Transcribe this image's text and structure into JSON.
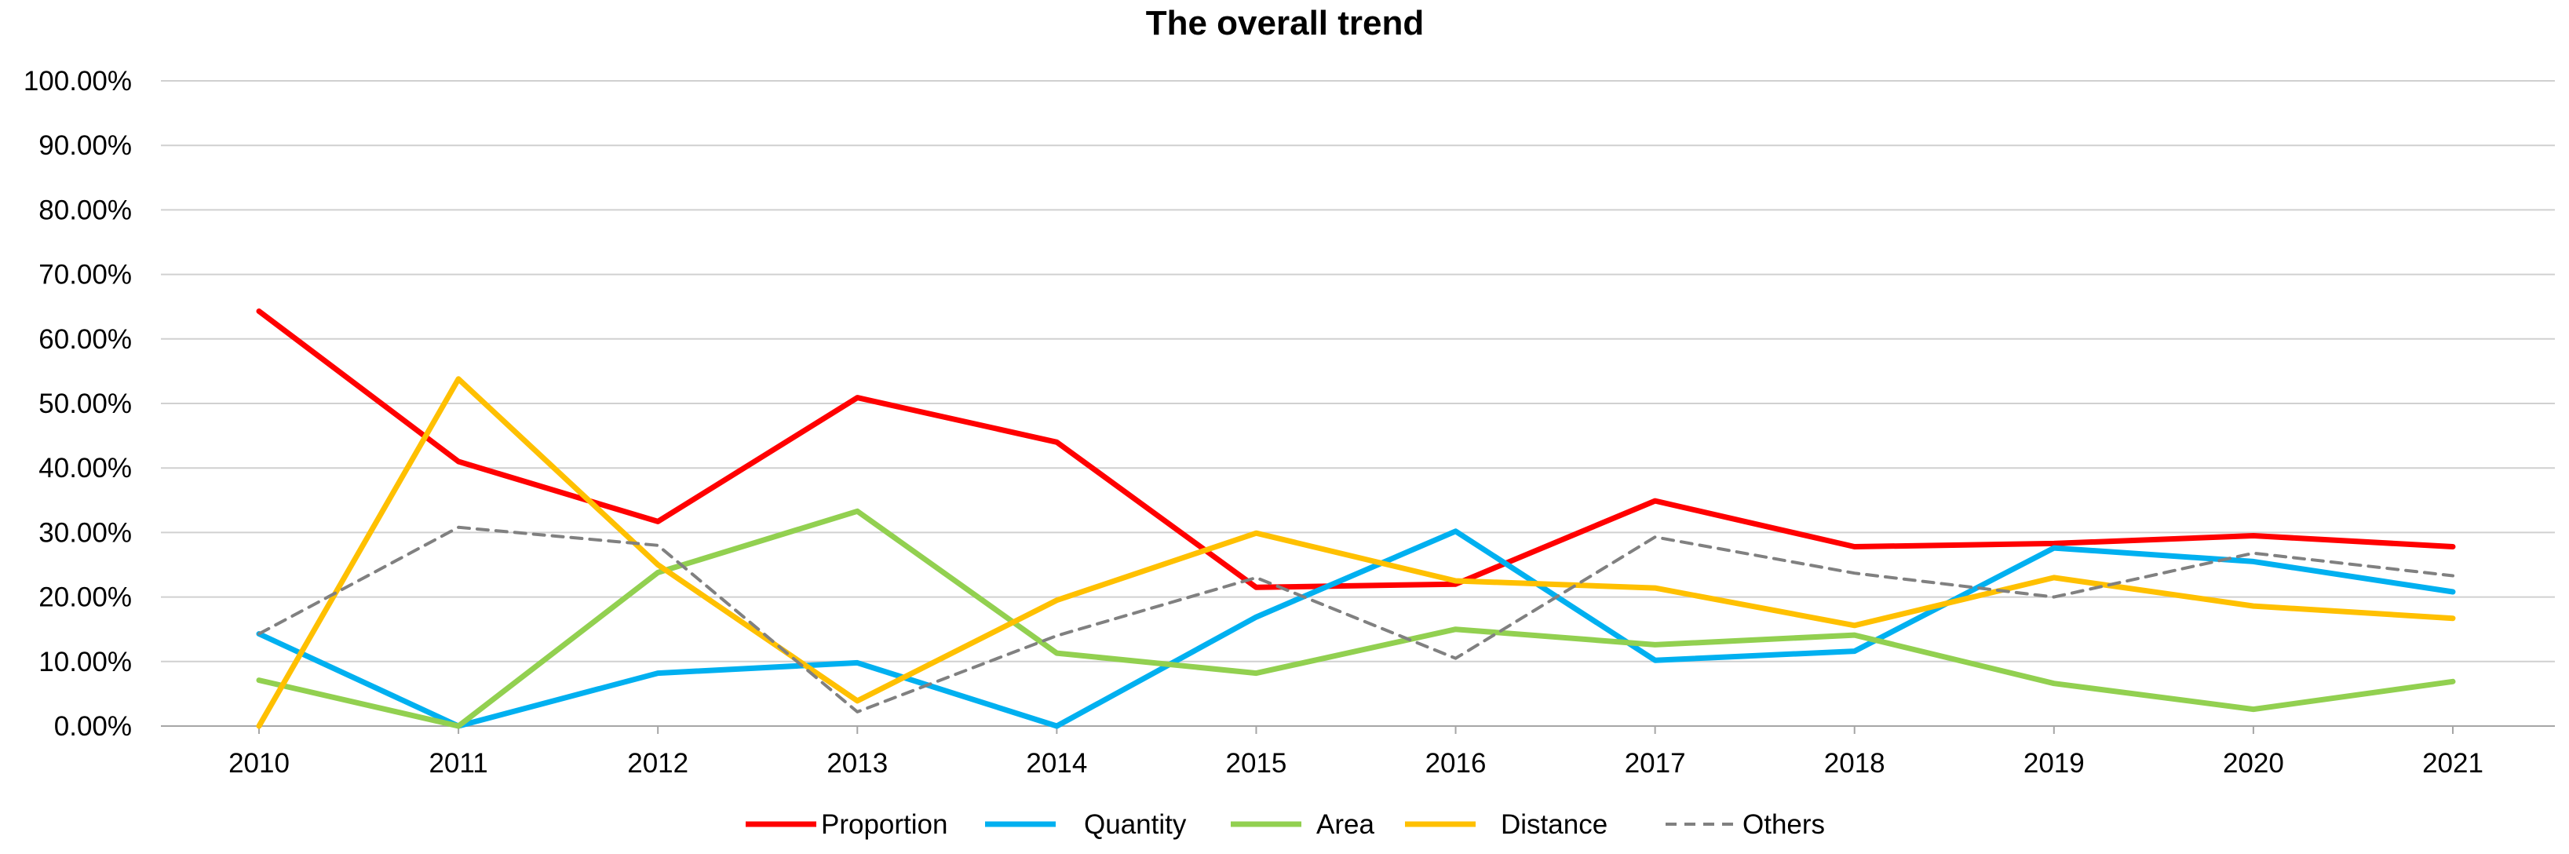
{
  "chart_data": {
    "type": "line",
    "title": "The overall trend",
    "xlabel": "",
    "ylabel": "",
    "ylim": [
      0,
      100
    ],
    "y_tick_values": [
      0,
      10,
      20,
      30,
      40,
      50,
      60,
      70,
      80,
      90,
      100
    ],
    "y_tick_labels": [
      "0.00%",
      "10.00%",
      "20.00%",
      "30.00%",
      "40.00%",
      "50.00%",
      "60.00%",
      "70.00%",
      "80.00%",
      "90.00%",
      "100.00%"
    ],
    "categories": [
      "2010",
      "2011",
      "2012",
      "2013",
      "2014",
      "2015",
      "2016",
      "2017",
      "2018",
      "2019",
      "2020",
      "2021"
    ],
    "grid": "horizontal",
    "legend_position": "bottom",
    "series": [
      {
        "name": "Proportion",
        "color": "#ff0000",
        "dash": "solid",
        "values": [
          64.3,
          41.0,
          31.7,
          50.9,
          44.0,
          21.5,
          22.0,
          34.9,
          27.8,
          28.3,
          29.5,
          27.8
        ]
      },
      {
        "name": "Quantity",
        "color": "#00b0f0",
        "dash": "solid",
        "values": [
          14.3,
          0.0,
          8.2,
          9.8,
          0.0,
          16.9,
          30.2,
          10.2,
          11.6,
          27.6,
          25.5,
          20.8
        ]
      },
      {
        "name": "Area",
        "color": "#92d050",
        "dash": "solid",
        "values": [
          7.1,
          0.0,
          23.8,
          33.3,
          11.3,
          8.2,
          15.0,
          12.6,
          14.1,
          6.6,
          2.6,
          6.9
        ]
      },
      {
        "name": "Distance",
        "color": "#ffc000",
        "dash": "solid",
        "values": [
          0.0,
          53.8,
          25.0,
          3.9,
          19.5,
          29.9,
          22.5,
          21.4,
          15.6,
          23.0,
          18.6,
          16.7
        ]
      },
      {
        "name": "Others",
        "color": "#808080",
        "dash": "dashed",
        "values": [
          14.3,
          30.8,
          28.0,
          2.2,
          14.0,
          23.0,
          10.5,
          29.3,
          23.7,
          20.0,
          26.8,
          23.3
        ]
      }
    ]
  }
}
